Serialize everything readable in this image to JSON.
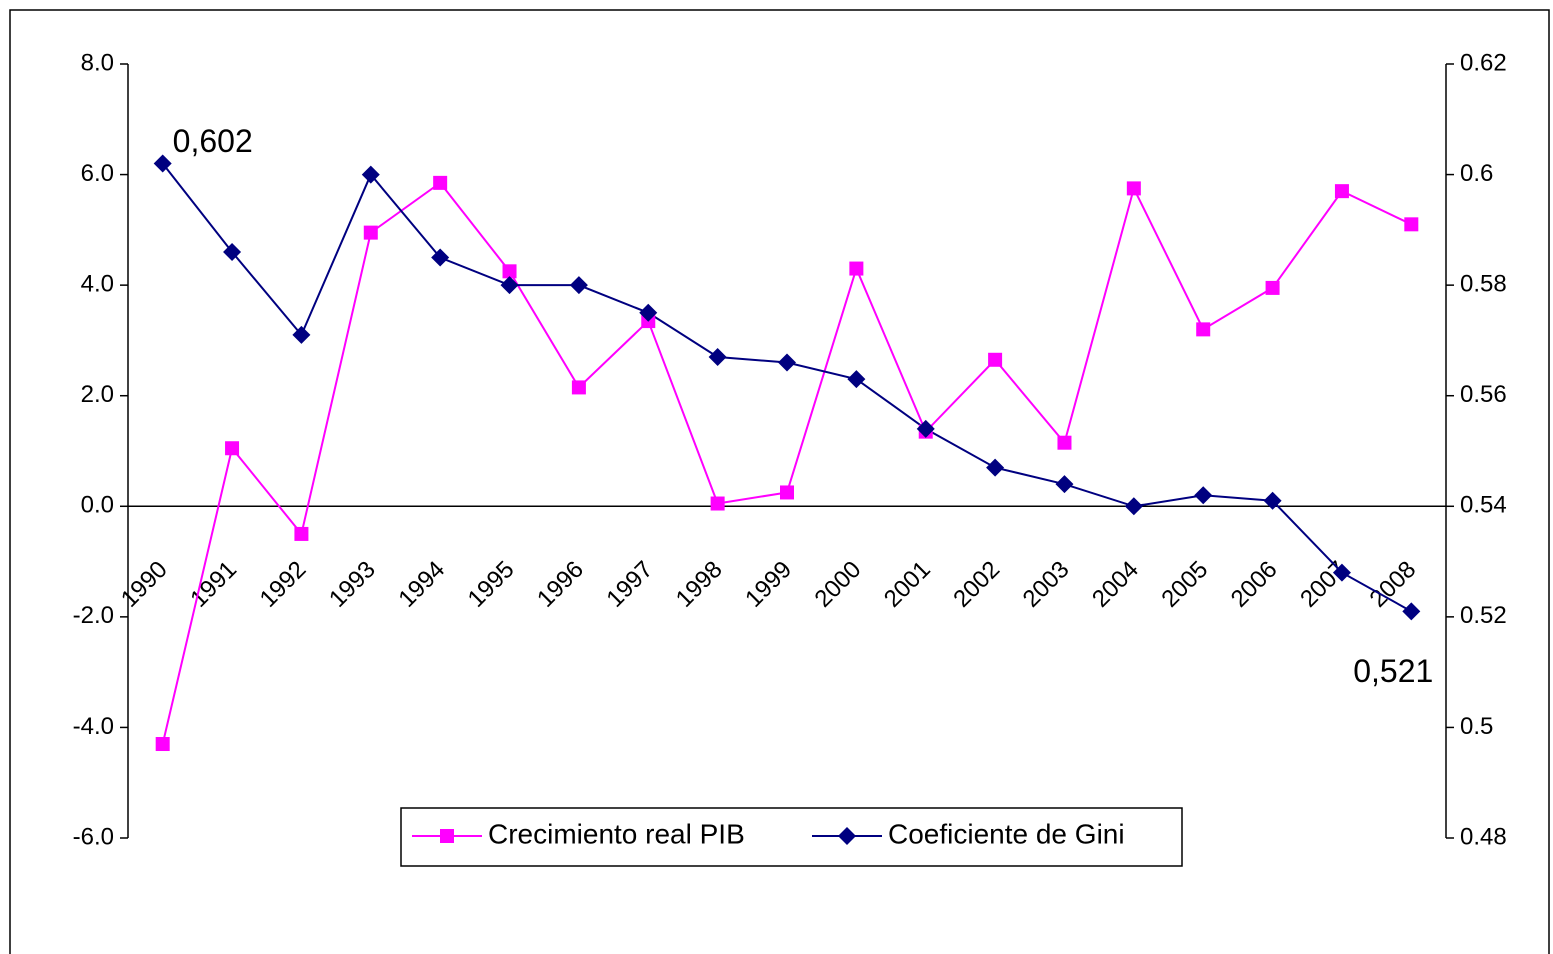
{
  "chart_data": {
    "type": "line",
    "categories": [
      "1990",
      "1991",
      "1992",
      "1993",
      "1994",
      "1995",
      "1996",
      "1997",
      "1998",
      "1999",
      "2000",
      "2001",
      "2002",
      "2003",
      "2004",
      "2005",
      "2006",
      "2007",
      "2008"
    ],
    "series": [
      {
        "name": "Crecimiento real PIB",
        "color": "#ff00ff",
        "marker": "square",
        "values": [
          -4.3,
          1.05,
          -0.5,
          4.95,
          5.85,
          4.25,
          2.15,
          3.35,
          0.05,
          0.25,
          4.3,
          1.35,
          2.65,
          1.15,
          5.75,
          3.2,
          3.95,
          5.7,
          5.1
        ]
      },
      {
        "name": "Coeficiente de Gini",
        "color": "#000080",
        "marker": "diamond",
        "axis": "y2",
        "values": [
          0.602,
          0.586,
          0.571,
          0.6,
          0.585,
          0.58,
          0.58,
          0.575,
          0.567,
          0.566,
          0.563,
          0.554,
          0.547,
          0.544,
          0.54,
          0.542,
          0.541,
          0.528,
          0.521
        ]
      }
    ],
    "annotations": [
      "0,602",
      "0,521"
    ],
    "ylim": [
      -6,
      8
    ],
    "yticks": [
      {
        "value": -6,
        "label": "-6.0"
      },
      {
        "value": -4,
        "label": "-4.0"
      },
      {
        "value": -2,
        "label": "-2.0"
      },
      {
        "value": 0,
        "label": "0.0"
      },
      {
        "value": 2,
        "label": "2.0"
      },
      {
        "value": 4,
        "label": "4.0"
      },
      {
        "value": 6,
        "label": "6.0"
      },
      {
        "value": 8,
        "label": "8.0"
      }
    ],
    "y2lim": [
      0.48,
      0.62
    ],
    "y2ticks": [
      0.48,
      0.5,
      0.52,
      0.54,
      0.56,
      0.58,
      0.6,
      0.62
    ],
    "grid": false,
    "legend": "bottom"
  }
}
